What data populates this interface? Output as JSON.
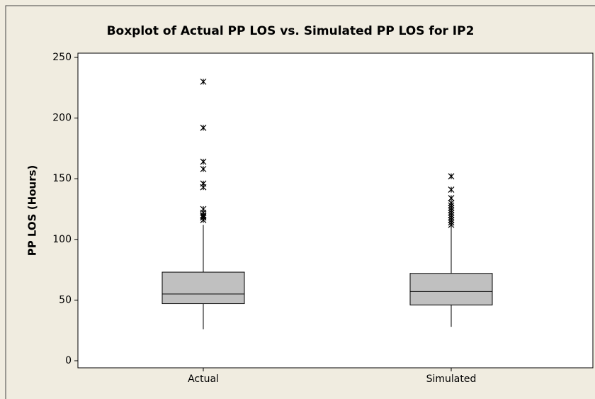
{
  "chart_data": {
    "type": "box",
    "title": "Boxplot of Actual PP LOS vs. Simulated PP LOS for IP2",
    "y_label": "PP LOS (Hours)",
    "categories": [
      "Actual",
      "Simulated"
    ],
    "color": "#c0c0c0",
    "boxes": [
      {
        "whisker_low": 26,
        "q1": 47,
        "median": 55,
        "q3": 73,
        "whisker_high": 112,
        "outliers": [
          230,
          192,
          164,
          158,
          146,
          143,
          125,
          122,
          120,
          119,
          118,
          116
        ]
      },
      {
        "whisker_low": 28,
        "q1": 46,
        "median": 57,
        "q3": 72,
        "whisker_high": 111,
        "outliers": [
          152,
          141,
          134,
          130,
          128,
          126,
          124,
          122,
          120,
          118,
          116,
          114,
          112
        ]
      }
    ],
    "ylim": [
      0,
      250
    ],
    "yticks": [
      0,
      50,
      100,
      150,
      200,
      250
    ],
    "grid": false
  }
}
